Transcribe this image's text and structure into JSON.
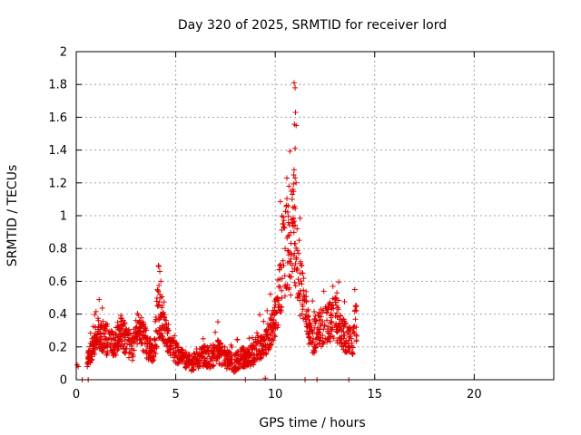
{
  "chart_data": {
    "type": "scatter",
    "title": "Day 320 of 2025, SRMTID for receiver lord",
    "xlabel": "GPS time / hours",
    "ylabel": "SRMTID / TECUs",
    "xlim": [
      0,
      24
    ],
    "ylim": [
      0,
      2
    ],
    "xticks": [
      "0",
      "5",
      "10",
      "15",
      "20"
    ],
    "xtick_values": [
      0,
      5,
      10,
      15,
      20
    ],
    "yticks": [
      "0",
      "0.2",
      "0.4",
      "0.6",
      "0.8",
      "1",
      "1.2",
      "1.4",
      "1.6",
      "1.8",
      "2"
    ],
    "ytick_values": [
      0,
      0.2,
      0.4,
      0.6,
      0.8,
      1.0,
      1.2,
      1.4,
      1.6,
      1.8,
      2.0
    ],
    "grid": true,
    "marker": "+",
    "color": "#e00000",
    "trend": {
      "x": [
        0.0,
        0.3,
        0.55,
        0.7,
        0.9,
        1.1,
        1.3,
        1.6,
        1.9,
        2.2,
        2.5,
        2.8,
        3.0,
        3.3,
        3.6,
        3.9,
        4.1,
        4.3,
        4.6,
        4.9,
        5.2,
        5.5,
        5.8,
        6.1,
        6.5,
        6.8,
        7.1,
        7.4,
        7.7,
        8.0,
        8.3,
        8.6,
        8.9,
        9.2,
        9.5,
        9.8,
        10.0,
        10.2,
        10.4,
        10.6,
        10.8,
        10.95,
        11.1,
        11.3,
        11.5,
        11.7,
        11.9,
        12.1,
        12.4,
        12.7,
        13.0,
        13.3,
        13.6,
        13.9,
        14.1
      ],
      "y": [
        0.09,
        0.03,
        0.12,
        0.16,
        0.22,
        0.28,
        0.26,
        0.24,
        0.2,
        0.3,
        0.25,
        0.18,
        0.32,
        0.28,
        0.2,
        0.16,
        0.42,
        0.35,
        0.24,
        0.18,
        0.14,
        0.12,
        0.1,
        0.12,
        0.15,
        0.12,
        0.18,
        0.14,
        0.12,
        0.1,
        0.14,
        0.13,
        0.16,
        0.2,
        0.22,
        0.3,
        0.38,
        0.52,
        0.75,
        0.9,
        0.8,
        0.95,
        0.62,
        0.55,
        0.45,
        0.3,
        0.25,
        0.3,
        0.32,
        0.35,
        0.38,
        0.3,
        0.25,
        0.22,
        0.4
      ],
      "spread": [
        0.02,
        0.02,
        0.05,
        0.07,
        0.08,
        0.1,
        0.1,
        0.1,
        0.08,
        0.1,
        0.1,
        0.08,
        0.1,
        0.1,
        0.08,
        0.07,
        0.2,
        0.12,
        0.08,
        0.07,
        0.06,
        0.05,
        0.05,
        0.06,
        0.07,
        0.06,
        0.08,
        0.07,
        0.06,
        0.06,
        0.06,
        0.06,
        0.07,
        0.08,
        0.08,
        0.1,
        0.12,
        0.2,
        0.28,
        0.35,
        0.3,
        0.35,
        0.2,
        0.18,
        0.12,
        0.1,
        0.1,
        0.1,
        0.12,
        0.12,
        0.14,
        0.1,
        0.1,
        0.08,
        0.15
      ]
    },
    "extra_points": [
      {
        "x": 0.05,
        "y": 0.09
      },
      {
        "x": 0.1,
        "y": 0.08
      },
      {
        "x": 0.6,
        "y": 0.0
      },
      {
        "x": 0.3,
        "y": 0.0
      },
      {
        "x": 4.15,
        "y": 0.69
      },
      {
        "x": 4.2,
        "y": 0.66
      },
      {
        "x": 4.25,
        "y": 0.6
      },
      {
        "x": 4.2,
        "y": 0.52
      },
      {
        "x": 10.8,
        "y": 1.15
      },
      {
        "x": 10.85,
        "y": 1.1
      },
      {
        "x": 10.9,
        "y": 1.05
      },
      {
        "x": 10.95,
        "y": 1.81
      },
      {
        "x": 11.0,
        "y": 1.78
      },
      {
        "x": 11.02,
        "y": 1.63
      },
      {
        "x": 11.05,
        "y": 1.55
      },
      {
        "x": 11.0,
        "y": 1.41
      },
      {
        "x": 10.95,
        "y": 1.28
      },
      {
        "x": 11.0,
        "y": 1.23
      },
      {
        "x": 11.05,
        "y": 1.2
      },
      {
        "x": 10.9,
        "y": 0.98
      },
      {
        "x": 11.1,
        "y": 0.92
      },
      {
        "x": 11.2,
        "y": 0.85
      },
      {
        "x": 10.7,
        "y": 0.88
      },
      {
        "x": 8.5,
        "y": 0.0
      },
      {
        "x": 11.5,
        "y": 0.0
      },
      {
        "x": 12.1,
        "y": 0.0
      },
      {
        "x": 13.7,
        "y": 0.0
      },
      {
        "x": 9.5,
        "y": 0.01
      },
      {
        "x": 12.9,
        "y": 0.57
      },
      {
        "x": 14.0,
        "y": 0.55
      },
      {
        "x": 13.1,
        "y": 0.53
      }
    ]
  }
}
